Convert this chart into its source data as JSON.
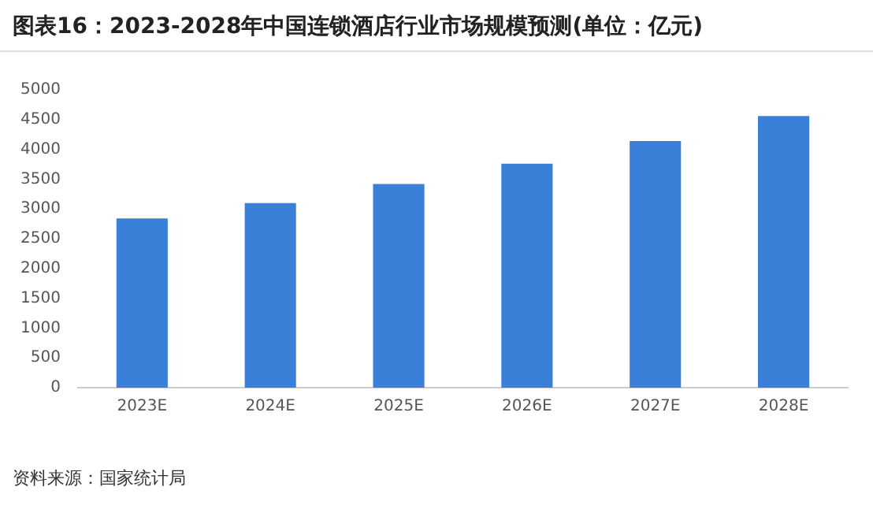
{
  "chart_data": {
    "type": "bar",
    "title": "图表16：2023-2028年中国连锁酒店行业市场规模预测(单位：亿元)",
    "categories": [
      "2023E",
      "2024E",
      "2025E",
      "2026E",
      "2027E",
      "2028E"
    ],
    "values": [
      2840,
      3100,
      3420,
      3760,
      4140,
      4560
    ],
    "color": "#3a80d9",
    "ylim": [
      0,
      5000
    ],
    "yticks": [
      0,
      500,
      1000,
      1500,
      2000,
      2500,
      3000,
      3500,
      4000,
      4500,
      5000
    ],
    "grid": false,
    "annotations": [
      "资料来源：国家统计局"
    ]
  }
}
